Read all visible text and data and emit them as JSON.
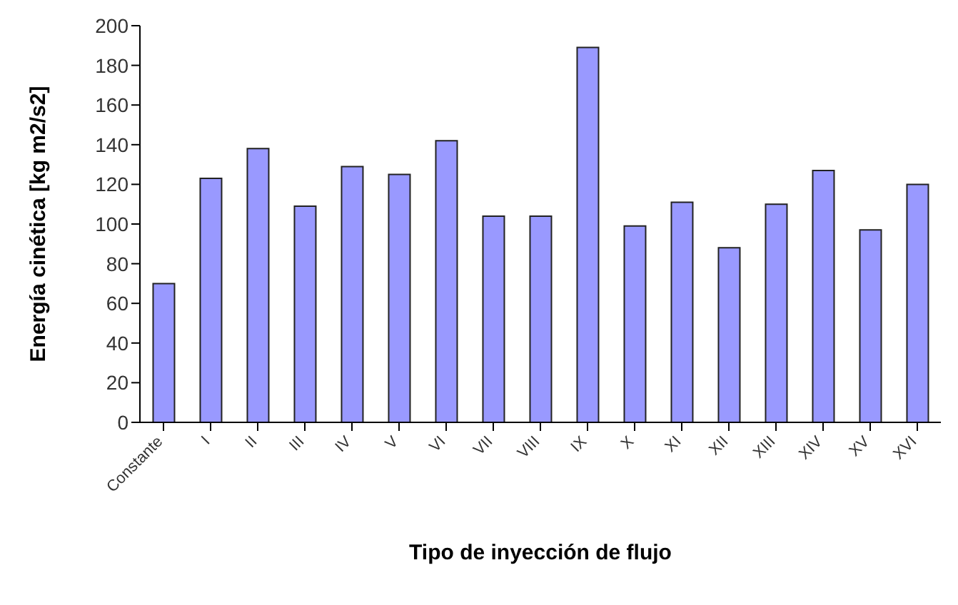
{
  "chart_data": {
    "type": "bar",
    "xlabel": "Tipo de inyección de flujo",
    "ylabel": "Energía cinética [kg m2/s2]",
    "categories": [
      "Constante",
      "I",
      "II",
      "III",
      "IV",
      "V",
      "VI",
      "VII",
      "VIII",
      "IX",
      "X",
      "XI",
      "XII",
      "XIII",
      "XIV",
      "XV",
      "XVI"
    ],
    "values": [
      70,
      123,
      138,
      109,
      129,
      125,
      142,
      104,
      104,
      189,
      99,
      111,
      88,
      110,
      127,
      97,
      120
    ],
    "color": "#9999ff",
    "ylim": [
      0,
      200
    ],
    "yticks": [
      0,
      20,
      40,
      60,
      80,
      100,
      120,
      140,
      160,
      180,
      200
    ],
    "grid": false
  }
}
